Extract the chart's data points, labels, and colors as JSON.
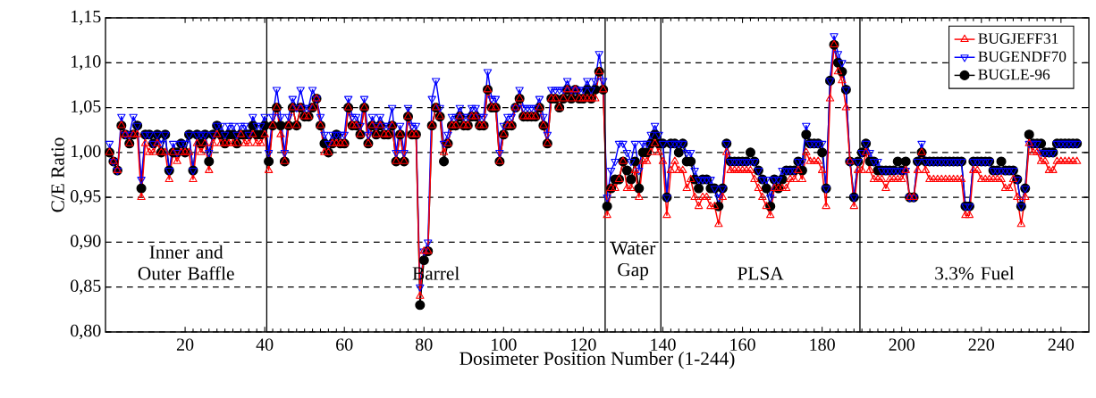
{
  "chart_data": {
    "type": "line",
    "xlabel": "Dosimeter Position Number (1-244)",
    "ylabel": "C/E Ratio",
    "x": [
      1,
      2,
      3,
      4,
      5,
      6,
      7,
      8,
      9,
      10,
      11,
      12,
      13,
      14,
      15,
      16,
      17,
      18,
      19,
      20,
      21,
      22,
      23,
      24,
      25,
      26,
      27,
      28,
      29,
      30,
      31,
      32,
      33,
      34,
      35,
      36,
      37,
      38,
      39,
      40,
      41,
      42,
      43,
      44,
      45,
      46,
      47,
      48,
      49,
      50,
      51,
      52,
      53,
      54,
      55,
      56,
      57,
      58,
      59,
      60,
      61,
      62,
      63,
      64,
      65,
      66,
      67,
      68,
      69,
      70,
      71,
      72,
      73,
      74,
      75,
      76,
      77,
      78,
      79,
      80,
      81,
      82,
      83,
      84,
      85,
      86,
      87,
      88,
      89,
      90,
      91,
      92,
      93,
      94,
      95,
      96,
      97,
      98,
      99,
      100,
      101,
      102,
      103,
      104,
      105,
      106,
      107,
      108,
      109,
      110,
      111,
      112,
      113,
      114,
      115,
      116,
      117,
      118,
      119,
      120,
      121,
      122,
      123,
      124,
      125,
      126,
      127,
      128,
      129,
      130,
      131,
      132,
      133,
      134,
      135,
      136,
      137,
      138,
      139,
      140,
      141,
      142,
      143,
      144,
      145,
      146,
      147,
      148,
      149,
      150,
      151,
      152,
      153,
      154,
      155,
      156,
      157,
      158,
      159,
      160,
      161,
      162,
      163,
      164,
      165,
      166,
      167,
      168,
      169,
      170,
      171,
      172,
      173,
      174,
      175,
      176,
      177,
      178,
      179,
      180,
      181,
      182,
      183,
      184,
      185,
      186,
      187,
      188,
      189,
      190,
      191,
      192,
      193,
      194,
      195,
      196,
      197,
      198,
      199,
      200,
      201,
      202,
      203,
      204,
      205,
      206,
      207,
      208,
      209,
      210,
      211,
      212,
      213,
      214,
      215,
      216,
      217,
      218,
      219,
      220,
      221,
      222,
      223,
      224,
      225,
      226,
      227,
      228,
      229,
      230,
      231,
      232,
      233,
      234,
      235,
      236,
      237,
      238,
      239,
      240,
      241,
      242,
      243,
      244
    ],
    "series": [
      {
        "name": "BUGJEFF31",
        "color": "#ff0000",
        "marker": "triangle",
        "values": [
          1.0,
          0.99,
          0.98,
          1.03,
          1.02,
          1.01,
          1.02,
          1.02,
          0.95,
          1.01,
          1.0,
          1.0,
          1.01,
          1.0,
          1.0,
          0.97,
          1.0,
          0.99,
          1.0,
          1.0,
          1.0,
          0.97,
          1.01,
          1.0,
          1.01,
          0.98,
          1.01,
          1.02,
          1.01,
          1.01,
          1.01,
          1.01,
          1.01,
          1.02,
          1.01,
          1.01,
          1.02,
          1.01,
          1.01,
          1.02,
          0.98,
          1.03,
          1.05,
          1.02,
          0.99,
          1.03,
          1.05,
          1.03,
          1.05,
          1.04,
          1.04,
          1.05,
          1.06,
          1.03,
          1.0,
          1.0,
          1.01,
          1.01,
          1.01,
          1.01,
          1.05,
          1.03,
          1.03,
          1.02,
          1.05,
          1.01,
          1.03,
          1.02,
          1.03,
          1.02,
          1.02,
          1.03,
          0.99,
          1.02,
          0.99,
          1.04,
          1.02,
          1.02,
          0.84,
          0.89,
          0.89,
          1.03,
          1.05,
          1.04,
          1.0,
          1.01,
          1.03,
          1.03,
          1.04,
          1.03,
          1.03,
          1.04,
          1.04,
          1.03,
          1.03,
          1.07,
          1.05,
          1.05,
          0.99,
          1.02,
          1.03,
          1.03,
          1.05,
          1.06,
          1.04,
          1.04,
          1.04,
          1.04,
          1.05,
          1.03,
          1.01,
          1.06,
          1.06,
          1.05,
          1.06,
          1.07,
          1.06,
          1.07,
          1.06,
          1.06,
          1.06,
          1.06,
          1.06,
          1.09,
          1.07,
          0.93,
          0.96,
          0.96,
          0.97,
          0.99,
          0.96,
          0.96,
          0.98,
          0.95,
          0.99,
          0.99,
          1.0,
          1.01,
          1.0,
          0.99,
          0.93,
          0.98,
          0.99,
          0.98,
          0.98,
          0.96,
          0.97,
          0.95,
          0.94,
          0.95,
          0.95,
          0.94,
          0.94,
          0.92,
          0.95,
          1.0,
          0.98,
          0.98,
          0.98,
          0.98,
          0.98,
          0.98,
          0.97,
          0.96,
          0.95,
          0.94,
          0.93,
          0.96,
          0.96,
          0.96,
          0.96,
          0.97,
          0.97,
          0.98,
          0.97,
          1.0,
          0.99,
          0.99,
          0.99,
          0.98,
          0.94,
          1.06,
          1.12,
          1.09,
          1.08,
          1.05,
          0.99,
          0.94,
          0.98,
          0.98,
          1.0,
          0.98,
          0.97,
          0.97,
          0.97,
          0.96,
          0.97,
          0.97,
          0.97,
          0.97,
          0.98,
          0.95,
          0.95,
          0.98,
          1.0,
          0.98,
          0.97,
          0.97,
          0.97,
          0.97,
          0.97,
          0.97,
          0.97,
          0.97,
          0.97,
          0.93,
          0.93,
          0.98,
          0.98,
          0.97,
          0.97,
          0.97,
          0.97,
          0.97,
          0.97,
          0.96,
          0.96,
          0.97,
          0.95,
          0.92,
          0.95,
          1.01,
          1.0,
          1.0,
          0.99,
          0.99,
          0.98,
          0.98,
          0.99,
          0.99,
          0.99,
          0.99,
          0.99,
          0.99
        ]
      },
      {
        "name": "BUGENDF70",
        "color": "#0000ff",
        "marker": "triangle down",
        "values": [
          1.01,
          0.99,
          0.98,
          1.04,
          1.02,
          1.02,
          1.04,
          1.03,
          0.97,
          1.02,
          1.02,
          1.01,
          1.02,
          1.01,
          1.02,
          0.98,
          1.01,
          1.0,
          1.01,
          1.01,
          1.02,
          0.98,
          1.02,
          1.02,
          1.02,
          1.0,
          1.02,
          1.03,
          1.03,
          1.02,
          1.03,
          1.03,
          1.02,
          1.03,
          1.03,
          1.02,
          1.04,
          1.03,
          1.03,
          1.04,
          1.0,
          1.04,
          1.07,
          1.04,
          1.0,
          1.04,
          1.06,
          1.05,
          1.07,
          1.05,
          1.05,
          1.07,
          1.06,
          1.04,
          1.02,
          1.01,
          1.02,
          1.02,
          1.02,
          1.02,
          1.06,
          1.04,
          1.04,
          1.03,
          1.06,
          1.02,
          1.04,
          1.03,
          1.04,
          1.03,
          1.03,
          1.05,
          1.0,
          1.03,
          1.0,
          1.05,
          1.03,
          1.03,
          0.85,
          0.89,
          0.9,
          1.06,
          1.08,
          1.05,
          1.01,
          1.02,
          1.04,
          1.04,
          1.05,
          1.04,
          1.04,
          1.05,
          1.05,
          1.04,
          1.04,
          1.09,
          1.06,
          1.06,
          1.0,
          1.03,
          1.04,
          1.04,
          1.05,
          1.07,
          1.05,
          1.05,
          1.05,
          1.05,
          1.06,
          1.04,
          1.02,
          1.07,
          1.07,
          1.07,
          1.07,
          1.08,
          1.07,
          1.07,
          1.07,
          1.07,
          1.08,
          1.07,
          1.08,
          1.11,
          1.08,
          0.95,
          0.98,
          0.99,
          1.01,
          1.01,
          1.0,
          0.99,
          1.01,
          0.98,
          1.01,
          1.01,
          1.02,
          1.03,
          1.02,
          1.01,
          0.95,
          1.01,
          1.01,
          1.01,
          1.01,
          1.0,
          1.0,
          0.98,
          0.97,
          0.97,
          0.97,
          0.97,
          0.96,
          0.95,
          0.96,
          1.01,
          0.99,
          0.99,
          0.99,
          0.99,
          0.99,
          0.99,
          0.99,
          0.98,
          0.97,
          0.97,
          0.95,
          0.97,
          0.97,
          0.98,
          0.98,
          0.98,
          0.98,
          0.99,
          0.99,
          1.03,
          1.01,
          1.01,
          1.01,
          1.01,
          0.96,
          1.08,
          1.13,
          1.11,
          1.1,
          1.07,
          0.99,
          0.95,
          0.99,
          1.0,
          1.01,
          1.0,
          0.99,
          0.99,
          0.98,
          0.98,
          0.98,
          0.98,
          0.98,
          0.98,
          0.98,
          0.95,
          0.95,
          0.99,
          1.01,
          0.99,
          0.99,
          0.99,
          0.99,
          0.99,
          0.99,
          0.99,
          0.99,
          0.99,
          0.99,
          0.94,
          0.94,
          0.99,
          0.99,
          0.99,
          0.99,
          0.99,
          0.98,
          0.98,
          0.98,
          0.98,
          0.98,
          0.98,
          0.97,
          0.94,
          0.96,
          1.01,
          1.01,
          1.01,
          1.0,
          1.0,
          1.0,
          1.0,
          1.01,
          1.01,
          1.01,
          1.01,
          1.01,
          1.01
        ]
      },
      {
        "name": "BUGLE-96",
        "color": "#000000",
        "marker": "circle",
        "values": [
          1.0,
          0.99,
          0.98,
          1.03,
          1.02,
          1.01,
          1.02,
          1.03,
          0.96,
          1.02,
          1.02,
          1.01,
          1.02,
          1.0,
          1.02,
          0.98,
          1.0,
          1.0,
          1.01,
          1.0,
          1.02,
          0.98,
          1.02,
          1.01,
          1.02,
          0.99,
          1.02,
          1.03,
          1.02,
          1.01,
          1.02,
          1.02,
          1.01,
          1.02,
          1.02,
          1.02,
          1.03,
          1.02,
          1.02,
          1.03,
          0.99,
          1.03,
          1.05,
          1.03,
          0.99,
          1.03,
          1.05,
          1.03,
          1.05,
          1.04,
          1.04,
          1.05,
          1.06,
          1.03,
          1.01,
          1.0,
          1.01,
          1.02,
          1.01,
          1.01,
          1.05,
          1.03,
          1.03,
          1.02,
          1.05,
          1.01,
          1.03,
          1.02,
          1.03,
          1.02,
          1.02,
          1.03,
          0.99,
          1.02,
          0.99,
          1.04,
          1.02,
          1.02,
          0.83,
          0.88,
          0.89,
          1.03,
          1.05,
          1.04,
          0.99,
          1.01,
          1.03,
          1.03,
          1.04,
          1.03,
          1.03,
          1.04,
          1.04,
          1.03,
          1.03,
          1.07,
          1.05,
          1.05,
          0.99,
          1.02,
          1.03,
          1.03,
          1.05,
          1.06,
          1.04,
          1.04,
          1.04,
          1.04,
          1.05,
          1.03,
          1.01,
          1.06,
          1.06,
          1.05,
          1.06,
          1.07,
          1.06,
          1.07,
          1.06,
          1.06,
          1.07,
          1.06,
          1.07,
          1.09,
          1.07,
          0.94,
          0.96,
          0.97,
          0.97,
          0.99,
          0.98,
          0.97,
          0.99,
          0.96,
          1.0,
          1.0,
          1.01,
          1.02,
          1.01,
          1.01,
          0.95,
          1.01,
          1.01,
          1.0,
          1.01,
          0.99,
          0.99,
          0.97,
          0.96,
          0.97,
          0.97,
          0.96,
          0.96,
          0.94,
          0.96,
          1.01,
          0.99,
          0.99,
          0.99,
          0.99,
          0.99,
          1.0,
          0.99,
          0.98,
          0.97,
          0.96,
          0.94,
          0.97,
          0.96,
          0.97,
          0.98,
          0.98,
          0.98,
          0.99,
          0.98,
          1.02,
          1.01,
          1.01,
          1.01,
          1.0,
          0.96,
          1.08,
          1.12,
          1.1,
          1.09,
          1.07,
          0.99,
          0.95,
          0.99,
          1.0,
          1.01,
          0.99,
          0.99,
          0.98,
          0.98,
          0.98,
          0.98,
          0.98,
          0.99,
          0.98,
          0.99,
          0.95,
          0.95,
          0.99,
          1.0,
          0.99,
          0.99,
          0.99,
          0.99,
          0.99,
          0.99,
          0.99,
          0.99,
          0.99,
          0.99,
          0.94,
          0.94,
          0.99,
          0.99,
          0.99,
          0.99,
          0.99,
          0.98,
          0.98,
          0.99,
          0.98,
          0.98,
          0.98,
          0.97,
          0.94,
          0.96,
          1.02,
          1.01,
          1.01,
          1.01,
          1.0,
          1.0,
          1.0,
          1.01,
          1.01,
          1.01,
          1.01,
          1.01,
          1.01
        ]
      }
    ],
    "xlim": [
      0,
      247
    ],
    "xticks": [
      20,
      40,
      60,
      80,
      100,
      120,
      140,
      160,
      180,
      200,
      220,
      240
    ],
    "ylim": [
      0.8,
      1.15
    ],
    "yticks": [
      {
        "value": 0.8,
        "label": "0,80"
      },
      {
        "value": 0.85,
        "label": "0,85"
      },
      {
        "value": 0.9,
        "label": "0,90"
      },
      {
        "value": 0.95,
        "label": "0,95"
      },
      {
        "value": 1.0,
        "label": "1,00"
      },
      {
        "value": 1.05,
        "label": "1,05"
      },
      {
        "value": 1.1,
        "label": "1,10"
      },
      {
        "value": 1.15,
        "label": "1,15"
      }
    ],
    "grid": "y",
    "legend": "top right",
    "ref_lines": [
      {
        "axis": "x",
        "value": 40.5
      },
      {
        "axis": "x",
        "value": 125.5
      },
      {
        "axis": "x",
        "value": 139.5
      },
      {
        "axis": "x",
        "value": 189.5
      }
    ],
    "annotations": [
      "Inner and Outer Baffle",
      "Barrel",
      "Water Gap",
      "PLSA",
      "3.3% Fuel"
    ]
  }
}
